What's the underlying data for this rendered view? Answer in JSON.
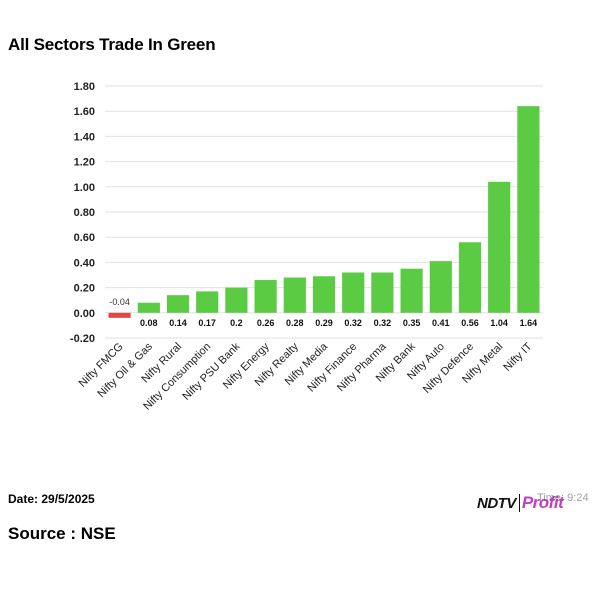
{
  "title": "All Sectors Trade In Green",
  "date_text": "Date: 29/5/2025",
  "time_text": "Time: 9:24",
  "source_text": "Source : NSE",
  "logo": {
    "brand": "NDTV",
    "sub": "Profit"
  },
  "colors": {
    "positive": "#5ccb44",
    "negative": "#e04848",
    "grid": "#e2e2e2",
    "axis": "#000000"
  },
  "chart_data": {
    "type": "bar",
    "categories": [
      "Nifty FMCG",
      "Nifty Oil & Gas",
      "Nifty Rural",
      "Nifty Consumption",
      "Nifty PSU Bank",
      "Nifty Energy",
      "Nifty Realty",
      "Nifty Media",
      "Nifty Finance",
      "Nifty Pharma",
      "Nifty Bank",
      "Nifty Auto",
      "Nifty Defence",
      "Nifty Metal",
      "Nifty IT"
    ],
    "values": [
      -0.04,
      0.08,
      0.14,
      0.17,
      0.2,
      0.26,
      0.28,
      0.29,
      0.32,
      0.32,
      0.35,
      0.41,
      0.56,
      1.04,
      1.64
    ],
    "value_labels": [
      "-0.04",
      "0.08",
      "0.14",
      "0.17",
      "0.2",
      "0.26",
      "0.28",
      "0.29",
      "0.32",
      "0.32",
      "0.35",
      "0.41",
      "0.56",
      "1.04",
      "1.64"
    ],
    "yticks": [
      "1.80",
      "1.60",
      "1.40",
      "1.20",
      "1.00",
      "0.80",
      "0.60",
      "0.40",
      "0.20",
      "0.00",
      "-0.20"
    ],
    "ylim": [
      -0.2,
      1.8
    ],
    "grid": true,
    "legend": "none",
    "xlabel": "",
    "ylabel": ""
  }
}
